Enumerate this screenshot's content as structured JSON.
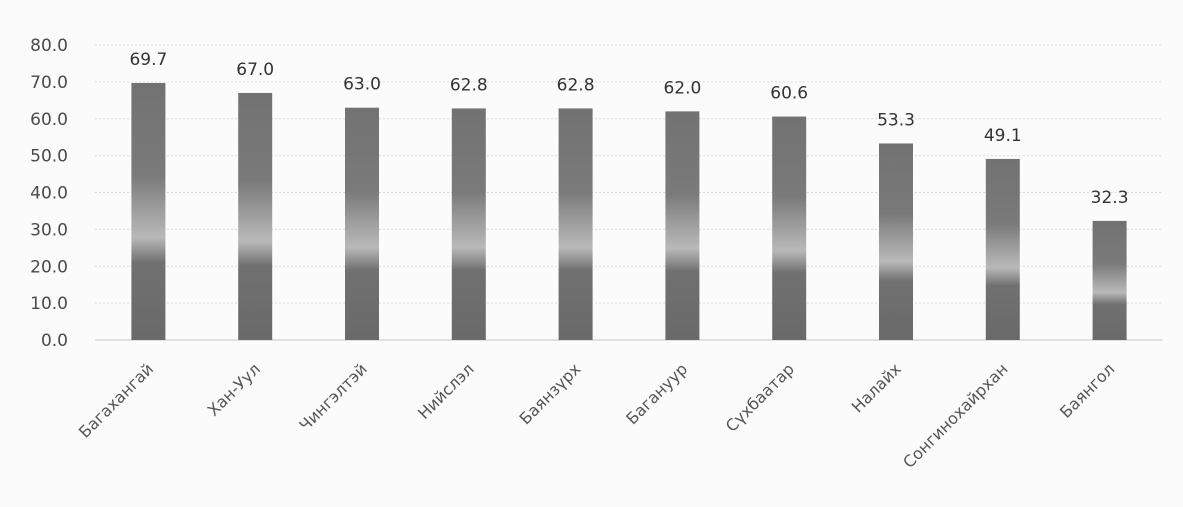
{
  "chart_data": {
    "type": "bar",
    "title": "",
    "xlabel": "",
    "ylabel": "",
    "categories": [
      "Багахангай",
      "Хан-Уул",
      "Чингэлтэй",
      "Нийслэл",
      "Баянзүрх",
      "Багануур",
      "Сүхбаатар",
      "Налайх",
      "Сонгинохайрхан",
      "Баянгол"
    ],
    "values": [
      69.7,
      67.0,
      63.0,
      62.8,
      62.8,
      62.0,
      60.6,
      53.3,
      49.1,
      32.3
    ],
    "value_labels": [
      "69.7",
      "67.0",
      "63.0",
      "62.8",
      "62.8",
      "62.0",
      "60.6",
      "53.3",
      "49.1",
      "32.3"
    ],
    "ylim": [
      0,
      80
    ],
    "yticks": [
      "0.0",
      "10.0",
      "20.0",
      "30.0",
      "40.0",
      "50.0",
      "60.0",
      "70.0",
      "80.0"
    ],
    "grid": true,
    "legend": "none",
    "colors": {
      "bar_dark": "#6f6f6f",
      "bar_light": "#bcbcbc",
      "grid": "#dcdcdc"
    }
  }
}
